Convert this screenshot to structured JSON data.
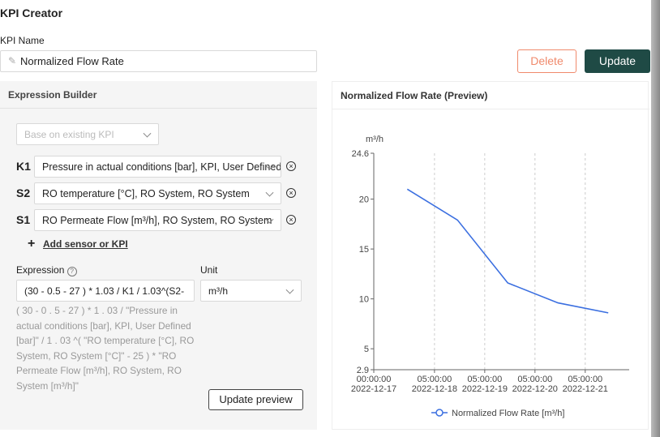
{
  "header": {
    "title": "KPI Creator"
  },
  "kpi_name": {
    "label": "KPI Name",
    "value": "Normalized Flow Rate"
  },
  "buttons": {
    "delete": "Delete",
    "update": "Update"
  },
  "expression_builder": {
    "title": "Expression Builder",
    "base_select": "Base on existing KPI",
    "variables": [
      {
        "name": "K1",
        "value": "Pressure in actual conditions [bar], KPI, User Defined"
      },
      {
        "name": "S2",
        "value": "RO temperature [°C], RO System, RO System"
      },
      {
        "name": "S1",
        "value": "RO Permeate Flow [m³/h], RO System, RO System"
      }
    ],
    "add_link": "Add sensor or KPI",
    "expression_label": "Expression",
    "expression": "(30 - 0.5 - 27 ) * 1.03 /  K1 / 1.03^(S2-",
    "unit_label": "Unit",
    "unit": "m³/h",
    "expression_text": "( 30 - 0 . 5 - 27 ) * 1 . 03 / \"Pressure in actual conditions [bar], KPI, User Defined [bar]\" / 1 . 03 ^( \"RO temperature [°C], RO System, RO System [°C]\" - 25 ) * \"RO Permeate Flow [m³/h], RO System, RO System [m³/h]\"",
    "update_preview": "Update preview"
  },
  "preview": {
    "title": "Normalized Flow Rate (Preview)"
  },
  "chart_data": {
    "type": "line",
    "y_label": "m³/h",
    "x": [
      "2022-12-17T16:00:00",
      "2022-12-18T16:00:00",
      "2022-12-19T16:00:00",
      "2022-12-20T16:00:00",
      "2022-12-21T16:00:00"
    ],
    "series": [
      {
        "name": "Normalized Flow Rate [m³/h]",
        "color": "#3b6fe0",
        "values": [
          21.0,
          17.9,
          11.6,
          9.6,
          8.6
        ]
      }
    ],
    "xlim": [
      "2022-12-17T00:00:00",
      "2022-12-22T02:00:00"
    ],
    "xticks": [
      {
        "value": "2022-12-17T00:00:00",
        "label": [
          "00:00:00",
          "2022-12-17"
        ]
      },
      {
        "value": "2022-12-18T05:00:00",
        "label": [
          "05:00:00",
          "2022-12-18"
        ]
      },
      {
        "value": "2022-12-19T05:00:00",
        "label": [
          "05:00:00",
          "2022-12-19"
        ]
      },
      {
        "value": "2022-12-20T05:00:00",
        "label": [
          "05:00:00",
          "2022-12-20"
        ]
      },
      {
        "value": "2022-12-21T05:00:00",
        "label": [
          "05:00:00",
          "2022-12-21"
        ]
      }
    ],
    "ylim": [
      2.9,
      24.6
    ],
    "yticks": [
      2.9,
      5,
      10,
      15,
      20,
      24.6
    ],
    "grid": true,
    "legend": "bottom"
  }
}
